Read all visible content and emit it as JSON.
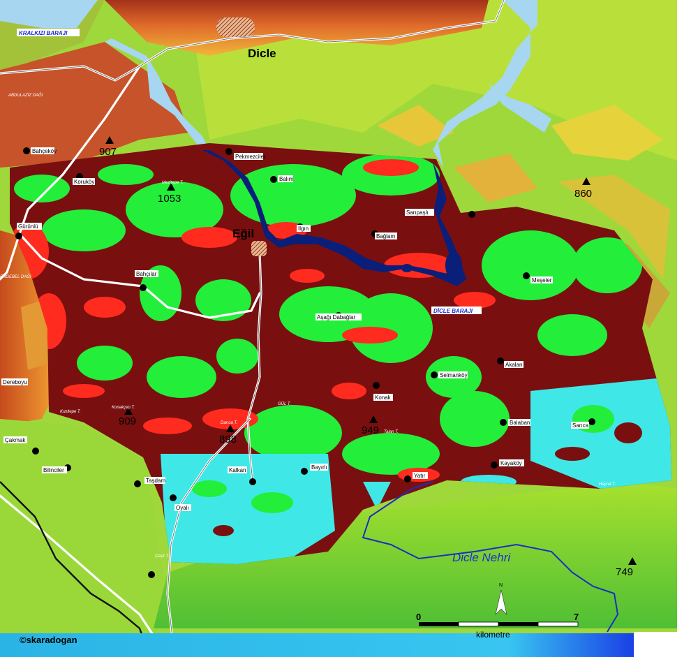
{
  "title": "Dicle",
  "cities": {
    "egil": "Eğil"
  },
  "water": {
    "kralkizi_dam": "KRALKIZI BARAJI",
    "dicle_dam": "DİCLE BARAJI",
    "dicle_river": "Dicle Nehri"
  },
  "mountains": {
    "abdulaziz": "ABDULAZİZ DAĞI",
    "engebel": "ENGEBEL DAĞI"
  },
  "peaks": [
    "907",
    "1053",
    "860",
    "909",
    "898",
    "949",
    "749"
  ],
  "hills": [
    "Mezitepe T.",
    "Konakçep T.",
    "Kızıltepe T.",
    "Darıca T.",
    "Talan T.",
    "Hayrat T.",
    "Çeşit T.",
    "GÜL T."
  ],
  "villages": [
    "Bahçeköy",
    "Pekmezciler",
    "Balım",
    "Koruköy",
    "Gürünlü",
    "Ilgın",
    "Sarıpaşlı",
    "Bağlam",
    "Meşeler",
    "Bahçılar",
    "Aşağı Dabağlar",
    "Selmanköy",
    "Akalan",
    "Konak",
    "Sarıca",
    "Balaban",
    "Kayaköy",
    "Dereboyu",
    "Çakmak",
    "Bilinciler",
    "Taşdam",
    "Yatır",
    "Bayırlı",
    "Kalkan",
    "Oyalı"
  ],
  "scale": {
    "start": "0",
    "end": "7",
    "unit": "kilometre"
  },
  "north": "N",
  "credit": "©skaradogan",
  "colors": {
    "lake": "#a6d6f0",
    "reservoir": "#0a1f7a",
    "dense_forest": "#7a0f10",
    "bare_soil": "#ff2b1e",
    "sparse_veg": "#23ee3a",
    "cropland": "#3fe8e6",
    "terrain_low": "#86d43a",
    "terrain_high": "#c84b1c"
  }
}
